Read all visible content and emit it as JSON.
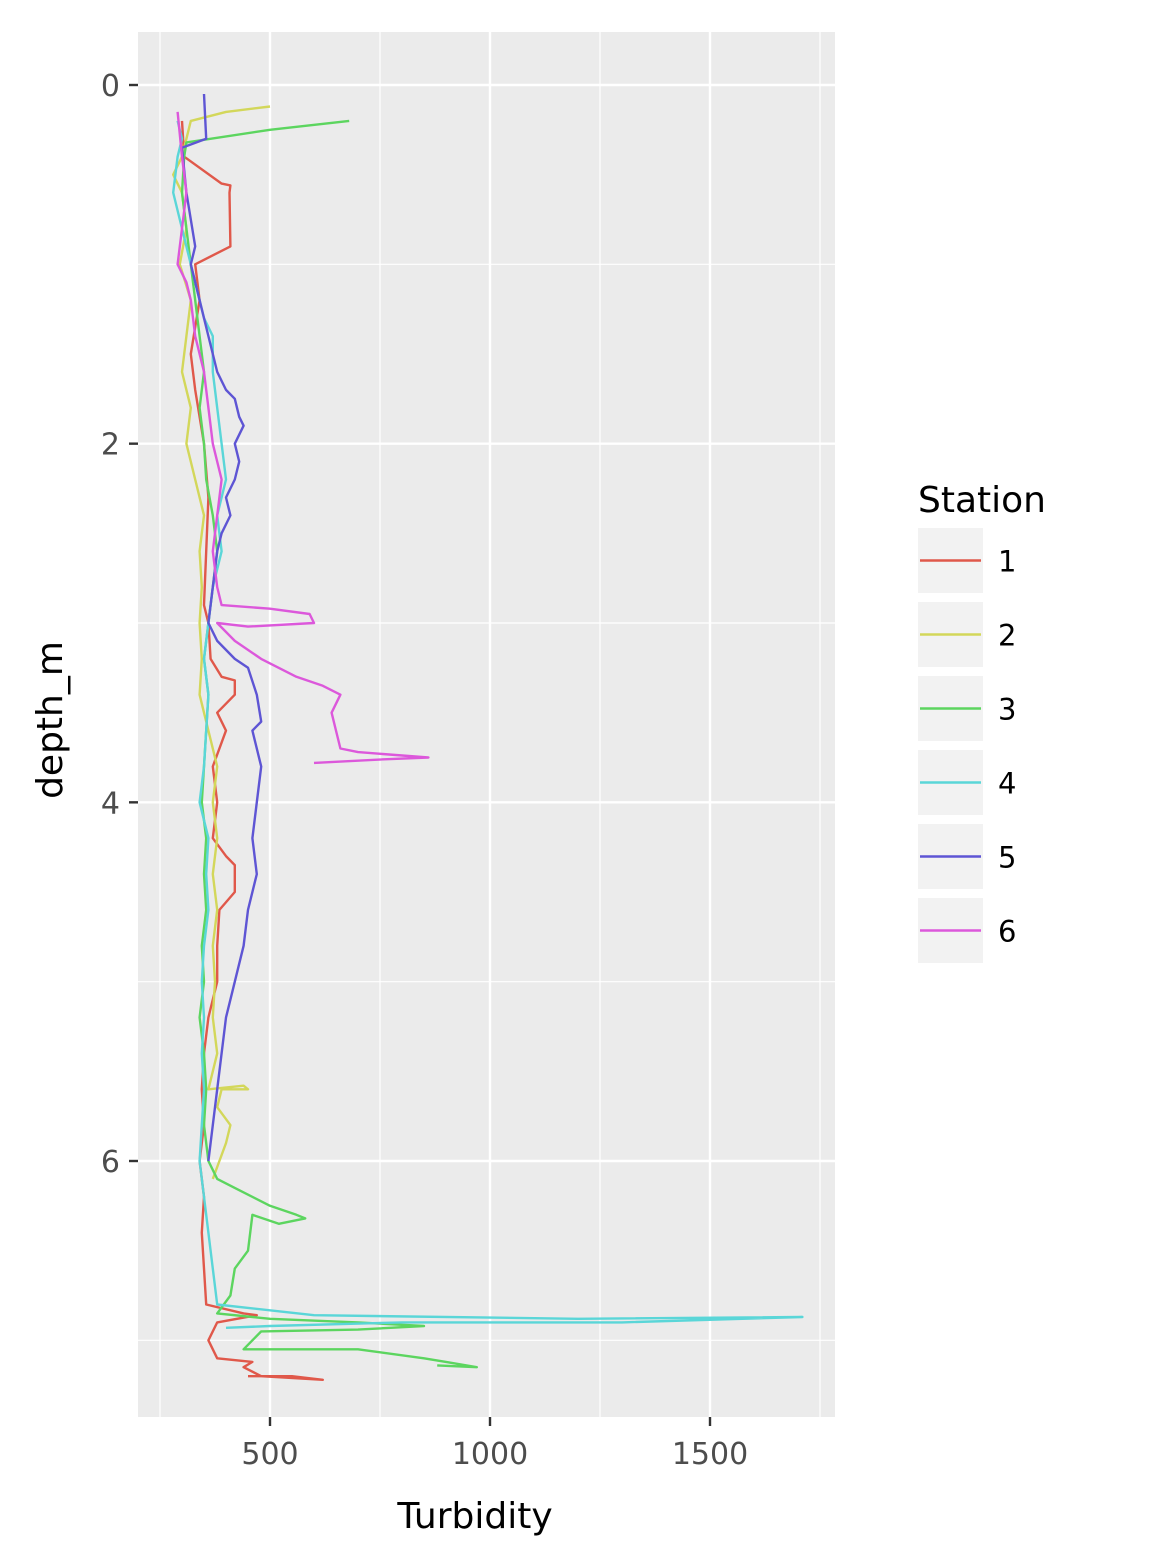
{
  "chart_data": {
    "type": "line",
    "xlabel": "Turbidity",
    "ylabel": "depth_m",
    "xlim": [
      200,
      1760
    ],
    "ylim": [
      7.4,
      -0.3
    ],
    "y_reversed": true,
    "x_ticks": [
      500,
      1000,
      1500
    ],
    "x_tick_labels": [
      "500",
      "1000",
      "1500"
    ],
    "y_ticks": [
      0,
      2,
      4,
      6
    ],
    "y_tick_labels": [
      "0",
      "2",
      "4",
      "6"
    ],
    "grid": true,
    "legend": {
      "title": "Station",
      "placement": "right"
    },
    "series": [
      {
        "name": "1",
        "color": "#E0584A",
        "points": [
          [
            300,
            0.2
          ],
          [
            305,
            0.4
          ],
          [
            390,
            0.55
          ],
          [
            410,
            0.56
          ],
          [
            408,
            0.6
          ],
          [
            410,
            0.9
          ],
          [
            330,
            1.0
          ],
          [
            340,
            1.2
          ],
          [
            320,
            1.5
          ],
          [
            330,
            1.7
          ],
          [
            350,
            2.0
          ],
          [
            360,
            2.3
          ],
          [
            355,
            2.6
          ],
          [
            350,
            2.9
          ],
          [
            360,
            3.0
          ],
          [
            365,
            3.2
          ],
          [
            390,
            3.3
          ],
          [
            420,
            3.32
          ],
          [
            420,
            3.4
          ],
          [
            380,
            3.5
          ],
          [
            400,
            3.6
          ],
          [
            370,
            3.8
          ],
          [
            380,
            4.0
          ],
          [
            370,
            4.2
          ],
          [
            400,
            4.3
          ],
          [
            420,
            4.35
          ],
          [
            420,
            4.5
          ],
          [
            385,
            4.6
          ],
          [
            380,
            4.8
          ],
          [
            380,
            5.0
          ],
          [
            360,
            5.2
          ],
          [
            350,
            5.4
          ],
          [
            345,
            5.6
          ],
          [
            350,
            5.8
          ],
          [
            340,
            6.0
          ],
          [
            350,
            6.2
          ],
          [
            345,
            6.4
          ],
          [
            350,
            6.6
          ],
          [
            355,
            6.8
          ],
          [
            440,
            6.85
          ],
          [
            470,
            6.86
          ],
          [
            380,
            6.9
          ],
          [
            360,
            7.0
          ],
          [
            380,
            7.1
          ],
          [
            460,
            7.12
          ],
          [
            440,
            7.15
          ],
          [
            480,
            7.2
          ],
          [
            620,
            7.22
          ],
          [
            550,
            7.2
          ],
          [
            450,
            7.2
          ]
        ]
      },
      {
        "name": "2",
        "color": "#D3D75A",
        "points": [
          [
            500,
            0.12
          ],
          [
            400,
            0.15
          ],
          [
            320,
            0.2
          ],
          [
            310,
            0.3
          ],
          [
            300,
            0.4
          ],
          [
            280,
            0.5
          ],
          [
            300,
            0.6
          ],
          [
            310,
            0.8
          ],
          [
            295,
            1.0
          ],
          [
            320,
            1.2
          ],
          [
            310,
            1.4
          ],
          [
            300,
            1.6
          ],
          [
            320,
            1.8
          ],
          [
            310,
            2.0
          ],
          [
            330,
            2.2
          ],
          [
            350,
            2.4
          ],
          [
            340,
            2.6
          ],
          [
            345,
            2.8
          ],
          [
            340,
            3.0
          ],
          [
            345,
            3.2
          ],
          [
            340,
            3.4
          ],
          [
            360,
            3.6
          ],
          [
            380,
            3.8
          ],
          [
            370,
            4.0
          ],
          [
            380,
            4.2
          ],
          [
            370,
            4.4
          ],
          [
            380,
            4.6
          ],
          [
            370,
            4.8
          ],
          [
            375,
            5.0
          ],
          [
            370,
            5.2
          ],
          [
            380,
            5.4
          ],
          [
            360,
            5.6
          ],
          [
            440,
            5.58
          ],
          [
            450,
            5.6
          ],
          [
            390,
            5.6
          ],
          [
            380,
            5.7
          ],
          [
            410,
            5.8
          ],
          [
            400,
            5.9
          ],
          [
            385,
            6.0
          ],
          [
            370,
            6.1
          ]
        ]
      },
      {
        "name": "3",
        "color": "#5CD55F",
        "points": [
          [
            680,
            0.2
          ],
          [
            500,
            0.25
          ],
          [
            310,
            0.32
          ],
          [
            305,
            0.4
          ],
          [
            300,
            0.6
          ],
          [
            310,
            0.8
          ],
          [
            320,
            1.0
          ],
          [
            330,
            1.2
          ],
          [
            340,
            1.4
          ],
          [
            350,
            1.6
          ],
          [
            340,
            1.8
          ],
          [
            350,
            2.0
          ],
          [
            355,
            2.2
          ],
          [
            370,
            2.4
          ],
          [
            380,
            2.6
          ],
          [
            370,
            2.8
          ],
          [
            360,
            3.0
          ],
          [
            350,
            3.2
          ],
          [
            360,
            3.4
          ],
          [
            355,
            3.6
          ],
          [
            350,
            3.8
          ],
          [
            345,
            4.0
          ],
          [
            355,
            4.2
          ],
          [
            350,
            4.4
          ],
          [
            355,
            4.6
          ],
          [
            345,
            4.8
          ],
          [
            350,
            5.0
          ],
          [
            340,
            5.2
          ],
          [
            350,
            5.4
          ],
          [
            355,
            5.6
          ],
          [
            350,
            5.8
          ],
          [
            360,
            6.0
          ],
          [
            380,
            6.1
          ],
          [
            420,
            6.15
          ],
          [
            500,
            6.25
          ],
          [
            560,
            6.3
          ],
          [
            580,
            6.32
          ],
          [
            520,
            6.35
          ],
          [
            460,
            6.3
          ],
          [
            450,
            6.5
          ],
          [
            420,
            6.6
          ],
          [
            410,
            6.75
          ],
          [
            380,
            6.85
          ],
          [
            500,
            6.88
          ],
          [
            700,
            6.9
          ],
          [
            850,
            6.92
          ],
          [
            700,
            6.94
          ],
          [
            480,
            6.95
          ],
          [
            460,
            7.0
          ],
          [
            440,
            7.05
          ],
          [
            700,
            7.05
          ],
          [
            850,
            7.1
          ],
          [
            900,
            7.12
          ],
          [
            970,
            7.15
          ],
          [
            880,
            7.14
          ]
        ]
      },
      {
        "name": "4",
        "color": "#5AD6D8",
        "points": [
          [
            290,
            0.2
          ],
          [
            300,
            0.3
          ],
          [
            290,
            0.4
          ],
          [
            280,
            0.6
          ],
          [
            300,
            0.8
          ],
          [
            320,
            1.0
          ],
          [
            340,
            1.2
          ],
          [
            350,
            1.3
          ],
          [
            370,
            1.4
          ],
          [
            370,
            1.6
          ],
          [
            380,
            1.8
          ],
          [
            390,
            2.0
          ],
          [
            400,
            2.2
          ],
          [
            380,
            2.4
          ],
          [
            390,
            2.6
          ],
          [
            370,
            2.8
          ],
          [
            360,
            3.0
          ],
          [
            350,
            3.2
          ],
          [
            360,
            3.4
          ],
          [
            355,
            3.6
          ],
          [
            350,
            3.8
          ],
          [
            340,
            4.0
          ],
          [
            360,
            4.2
          ],
          [
            355,
            4.4
          ],
          [
            360,
            4.6
          ],
          [
            350,
            4.8
          ],
          [
            345,
            5.0
          ],
          [
            350,
            5.2
          ],
          [
            345,
            5.4
          ],
          [
            350,
            5.6
          ],
          [
            345,
            5.8
          ],
          [
            340,
            6.0
          ],
          [
            350,
            6.2
          ],
          [
            360,
            6.4
          ],
          [
            370,
            6.6
          ],
          [
            380,
            6.8
          ],
          [
            600,
            6.86
          ],
          [
            1200,
            6.88
          ],
          [
            1710,
            6.87
          ],
          [
            1300,
            6.9
          ],
          [
            800,
            6.9
          ],
          [
            500,
            6.92
          ],
          [
            400,
            6.93
          ]
        ]
      },
      {
        "name": "5",
        "color": "#5E55D4",
        "points": [
          [
            350,
            0.05
          ],
          [
            355,
            0.3
          ],
          [
            300,
            0.35
          ],
          [
            310,
            0.6
          ],
          [
            330,
            0.9
          ],
          [
            320,
            1.0
          ],
          [
            340,
            1.2
          ],
          [
            360,
            1.4
          ],
          [
            380,
            1.6
          ],
          [
            400,
            1.7
          ],
          [
            420,
            1.75
          ],
          [
            430,
            1.85
          ],
          [
            440,
            1.9
          ],
          [
            420,
            2.0
          ],
          [
            430,
            2.1
          ],
          [
            420,
            2.2
          ],
          [
            400,
            2.3
          ],
          [
            410,
            2.4
          ],
          [
            390,
            2.5
          ],
          [
            380,
            2.6
          ],
          [
            370,
            2.8
          ],
          [
            360,
            3.0
          ],
          [
            380,
            3.1
          ],
          [
            420,
            3.2
          ],
          [
            450,
            3.25
          ],
          [
            470,
            3.4
          ],
          [
            480,
            3.55
          ],
          [
            460,
            3.6
          ],
          [
            480,
            3.8
          ],
          [
            470,
            4.0
          ],
          [
            460,
            4.2
          ],
          [
            470,
            4.4
          ],
          [
            450,
            4.6
          ],
          [
            440,
            4.8
          ],
          [
            420,
            5.0
          ],
          [
            400,
            5.2
          ],
          [
            390,
            5.4
          ],
          [
            380,
            5.6
          ],
          [
            370,
            5.8
          ],
          [
            360,
            6.0
          ]
        ]
      },
      {
        "name": "6",
        "color": "#DC58DB",
        "points": [
          [
            290,
            0.15
          ],
          [
            300,
            0.4
          ],
          [
            310,
            0.6
          ],
          [
            300,
            0.8
          ],
          [
            290,
            1.0
          ],
          [
            310,
            1.1
          ],
          [
            320,
            1.2
          ],
          [
            330,
            1.4
          ],
          [
            350,
            1.6
          ],
          [
            360,
            1.8
          ],
          [
            370,
            2.0
          ],
          [
            380,
            2.1
          ],
          [
            390,
            2.2
          ],
          [
            380,
            2.4
          ],
          [
            370,
            2.6
          ],
          [
            380,
            2.8
          ],
          [
            390,
            2.9
          ],
          [
            500,
            2.92
          ],
          [
            590,
            2.95
          ],
          [
            600,
            3.0
          ],
          [
            450,
            3.02
          ],
          [
            380,
            3.0
          ],
          [
            420,
            3.1
          ],
          [
            480,
            3.2
          ],
          [
            560,
            3.3
          ],
          [
            620,
            3.35
          ],
          [
            660,
            3.4
          ],
          [
            640,
            3.5
          ],
          [
            650,
            3.6
          ],
          [
            660,
            3.7
          ],
          [
            700,
            3.72
          ],
          [
            860,
            3.75
          ],
          [
            760,
            3.76
          ],
          [
            600,
            3.78
          ]
        ]
      }
    ]
  }
}
